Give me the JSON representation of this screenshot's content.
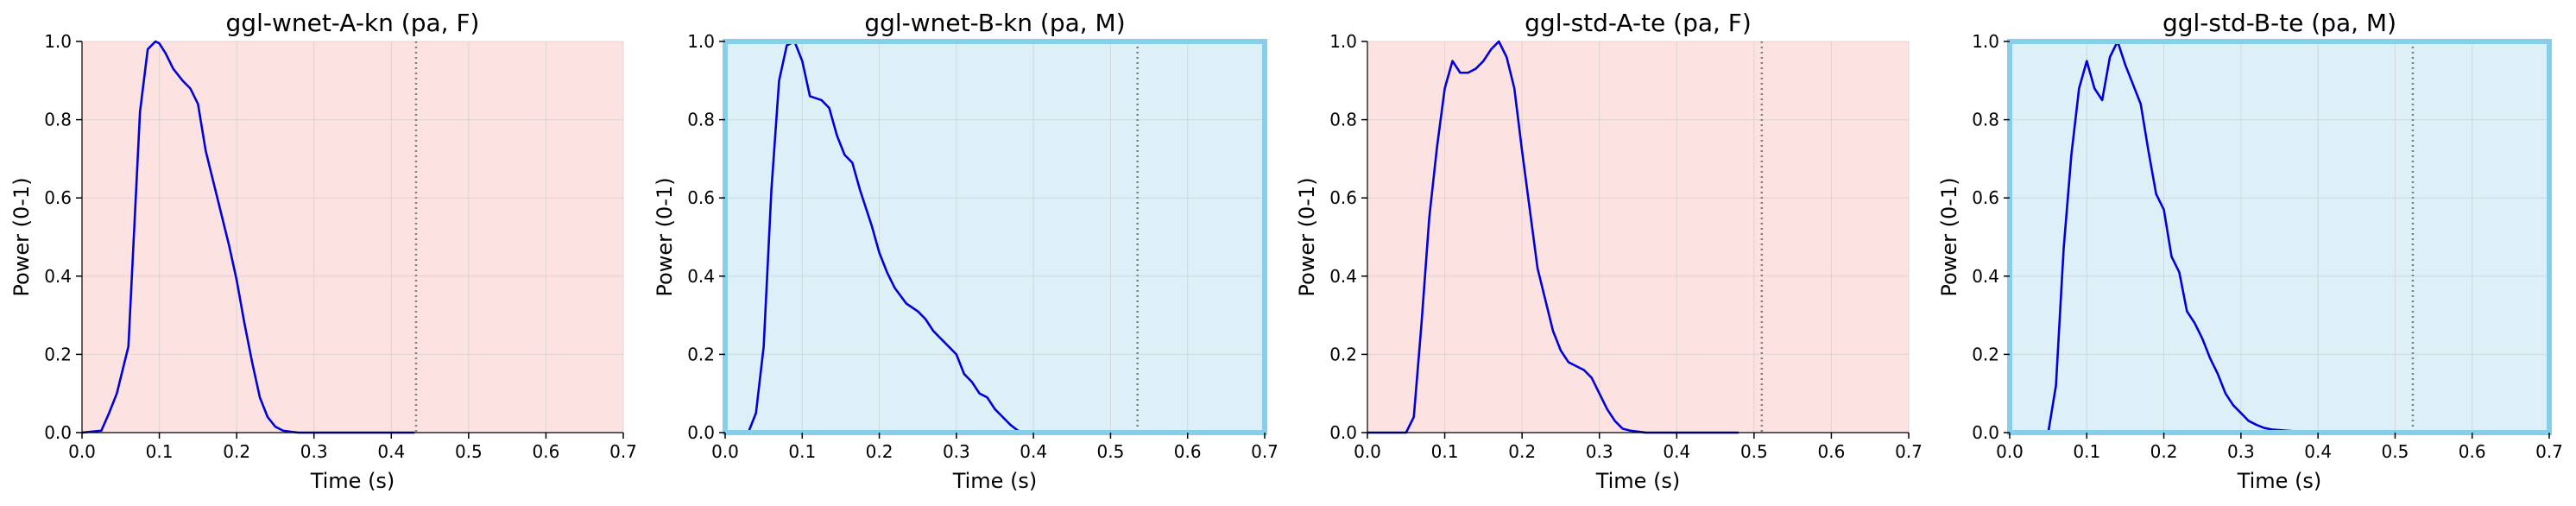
{
  "chart_data": [
    {
      "type": "line",
      "title": "ggl-wnet-A-kn (pa, F)",
      "xlabel": "Time (s)",
      "ylabel": "Power (0-1)",
      "xlim": [
        0,
        0.7
      ],
      "ylim": [
        0,
        1
      ],
      "xticks": [
        "0.0",
        "0.1",
        "0.2",
        "0.3",
        "0.4",
        "0.5",
        "0.6",
        "0.7"
      ],
      "yticks": [
        "0.0",
        "0.2",
        "0.4",
        "0.6",
        "0.8",
        "1.0"
      ],
      "grid": true,
      "background_color": "#fde2e2",
      "highlight_frame": false,
      "line_color": "#0000dd",
      "vline_x": 0.432,
      "x": [
        0.0,
        0.025,
        0.035,
        0.045,
        0.06,
        0.075,
        0.085,
        0.095,
        0.1,
        0.108,
        0.118,
        0.13,
        0.14,
        0.15,
        0.16,
        0.17,
        0.18,
        0.19,
        0.2,
        0.21,
        0.22,
        0.23,
        0.24,
        0.25,
        0.26,
        0.27,
        0.28,
        0.3,
        0.32,
        0.35,
        0.43
      ],
      "y": [
        0.0,
        0.005,
        0.05,
        0.1,
        0.22,
        0.82,
        0.98,
        1.0,
        0.995,
        0.97,
        0.93,
        0.9,
        0.88,
        0.84,
        0.72,
        0.64,
        0.56,
        0.48,
        0.39,
        0.28,
        0.18,
        0.09,
        0.04,
        0.015,
        0.005,
        0.002,
        0.0,
        0.0,
        0.0,
        0.0,
        0.0
      ]
    },
    {
      "type": "line",
      "title": "ggl-wnet-B-kn (pa, M)",
      "xlabel": "Time (s)",
      "ylabel": "Power (0-1)",
      "xlim": [
        0,
        0.7
      ],
      "ylim": [
        0,
        1
      ],
      "xticks": [
        "0.0",
        "0.1",
        "0.2",
        "0.3",
        "0.4",
        "0.5",
        "0.6",
        "0.7"
      ],
      "yticks": [
        "0.0",
        "0.2",
        "0.4",
        "0.6",
        "0.8",
        "1.0"
      ],
      "grid": true,
      "background_color": "#ddeff7",
      "highlight_frame": true,
      "frame_color": "#87ceeb",
      "line_color": "#0000dd",
      "vline_x": 0.535,
      "x": [
        0.03,
        0.04,
        0.05,
        0.06,
        0.07,
        0.08,
        0.09,
        0.1,
        0.11,
        0.125,
        0.135,
        0.145,
        0.155,
        0.165,
        0.175,
        0.19,
        0.2,
        0.21,
        0.22,
        0.235,
        0.25,
        0.26,
        0.27,
        0.28,
        0.29,
        0.3,
        0.31,
        0.32,
        0.33,
        0.34,
        0.35,
        0.36,
        0.37,
        0.38,
        0.39
      ],
      "y": [
        0.0,
        0.05,
        0.22,
        0.62,
        0.9,
        0.99,
        1.0,
        0.95,
        0.86,
        0.85,
        0.83,
        0.76,
        0.71,
        0.69,
        0.62,
        0.53,
        0.46,
        0.41,
        0.37,
        0.33,
        0.31,
        0.29,
        0.26,
        0.24,
        0.22,
        0.2,
        0.15,
        0.13,
        0.1,
        0.09,
        0.06,
        0.04,
        0.02,
        0.005,
        0.0
      ]
    },
    {
      "type": "line",
      "title": "ggl-std-A-te (pa, F)",
      "xlabel": "Time (s)",
      "ylabel": "Power (0-1)",
      "xlim": [
        0,
        0.7
      ],
      "ylim": [
        0,
        1
      ],
      "xticks": [
        "0.0",
        "0.1",
        "0.2",
        "0.3",
        "0.4",
        "0.5",
        "0.6",
        "0.7"
      ],
      "yticks": [
        "0.0",
        "0.2",
        "0.4",
        "0.6",
        "0.8",
        "1.0"
      ],
      "grid": true,
      "background_color": "#fde2e2",
      "highlight_frame": false,
      "line_color": "#0000dd",
      "vline_x": 0.51,
      "x": [
        0.0,
        0.05,
        0.06,
        0.07,
        0.08,
        0.09,
        0.1,
        0.11,
        0.12,
        0.13,
        0.14,
        0.15,
        0.16,
        0.17,
        0.18,
        0.19,
        0.2,
        0.21,
        0.22,
        0.23,
        0.24,
        0.25,
        0.26,
        0.27,
        0.28,
        0.29,
        0.3,
        0.31,
        0.32,
        0.33,
        0.34,
        0.36,
        0.4,
        0.48
      ],
      "y": [
        0.0,
        0.0,
        0.04,
        0.28,
        0.55,
        0.73,
        0.88,
        0.95,
        0.92,
        0.92,
        0.93,
        0.95,
        0.98,
        1.0,
        0.96,
        0.88,
        0.72,
        0.57,
        0.42,
        0.34,
        0.26,
        0.21,
        0.18,
        0.17,
        0.16,
        0.14,
        0.1,
        0.06,
        0.03,
        0.01,
        0.005,
        0.0,
        0.0,
        0.0
      ]
    },
    {
      "type": "line",
      "title": "ggl-std-B-te (pa, M)",
      "xlabel": "Time (s)",
      "ylabel": "Power (0-1)",
      "xlim": [
        0,
        0.7
      ],
      "ylim": [
        0,
        1
      ],
      "xticks": [
        "0.0",
        "0.1",
        "0.2",
        "0.3",
        "0.4",
        "0.5",
        "0.6",
        "0.7"
      ],
      "yticks": [
        "0.0",
        "0.2",
        "0.4",
        "0.6",
        "0.8",
        "1.0"
      ],
      "grid": true,
      "background_color": "#ddeff7",
      "highlight_frame": true,
      "frame_color": "#87ceeb",
      "line_color": "#0000dd",
      "vline_x": 0.523,
      "x": [
        0.05,
        0.06,
        0.07,
        0.08,
        0.09,
        0.1,
        0.11,
        0.12,
        0.13,
        0.14,
        0.15,
        0.16,
        0.17,
        0.18,
        0.19,
        0.2,
        0.21,
        0.22,
        0.23,
        0.24,
        0.25,
        0.26,
        0.27,
        0.28,
        0.29,
        0.3,
        0.31,
        0.32,
        0.33,
        0.34,
        0.36,
        0.38,
        0.4
      ],
      "y": [
        0.0,
        0.12,
        0.47,
        0.71,
        0.88,
        0.95,
        0.88,
        0.85,
        0.96,
        1.0,
        0.94,
        0.89,
        0.84,
        0.72,
        0.61,
        0.57,
        0.45,
        0.41,
        0.31,
        0.28,
        0.24,
        0.19,
        0.15,
        0.1,
        0.07,
        0.05,
        0.03,
        0.02,
        0.012,
        0.008,
        0.005,
        0.002,
        0.0
      ]
    }
  ]
}
